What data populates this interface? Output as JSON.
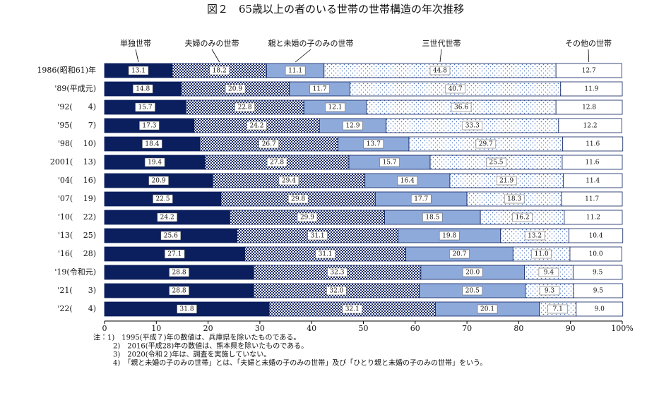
{
  "chart_data": {
    "type": "stacked-bar-horizontal",
    "title": "図２　65歳以上の者のいる世帯の世帯構造の年次推移",
    "categories": [
      "1986(昭和61)年",
      "'89(平成元)",
      "'92(　　4)",
      "'95(　　7)",
      "'98(　 10)",
      "2001(　 13)",
      "'04(　 16)",
      "'07(　 19)",
      "'10(　 22)",
      "'13(　 25)",
      "'16(　 28)",
      "'19(令和元)",
      "'21(　　3)",
      "'22(　　4)"
    ],
    "series": [
      {
        "name": "単独世帯",
        "color": "#0b1f5e",
        "pattern": "solid",
        "values": [
          13.1,
          14.8,
          15.7,
          17.3,
          18.4,
          19.4,
          20.9,
          22.5,
          24.2,
          25.6,
          27.1,
          28.8,
          28.8,
          31.8
        ],
        "value_labels": [
          "13.1",
          "14.8",
          "15.7",
          "17.3",
          "18.4",
          "19.4",
          "20.9",
          "22.5",
          "24.2",
          "25.6",
          "27.1",
          "28.8",
          "28.8",
          "31.8"
        ]
      },
      {
        "name": "夫婦のみの世帯",
        "color": "#1a2d6b",
        "pattern": "checker",
        "values": [
          18.2,
          20.9,
          22.8,
          24.2,
          26.7,
          27.8,
          29.4,
          29.8,
          29.9,
          31.1,
          31.1,
          32.3,
          32.0,
          32.1
        ],
        "value_labels": [
          "18.2",
          "20.9",
          "22.8",
          "24.2",
          "26.7",
          "27.8",
          "29.4",
          "29.8",
          "29.9",
          "31.1",
          "31.1",
          "32.3",
          "32.0",
          "32.1"
        ]
      },
      {
        "name": "親と未婚の子のみの世帯",
        "color": "#8eaadb",
        "pattern": "solid",
        "values": [
          11.1,
          11.7,
          12.1,
          12.9,
          13.7,
          15.7,
          16.4,
          17.7,
          18.5,
          19.8,
          20.7,
          20.0,
          20.5,
          20.1
        ],
        "value_labels": [
          "11.1",
          "11.7",
          "12.1",
          "12.9",
          "13.7",
          "15.7",
          "16.4",
          "17.7",
          "18.5",
          "19.8",
          "20.7",
          "20.0",
          "20.5",
          "20.1"
        ]
      },
      {
        "name": "三世代世帯",
        "color": "#3f6fc4",
        "pattern": "dots",
        "values": [
          44.8,
          40.7,
          36.6,
          33.3,
          29.7,
          25.5,
          21.9,
          18.3,
          16.2,
          13.2,
          11.0,
          9.4,
          9.3,
          7.1
        ],
        "value_labels": [
          "44.8",
          "40.7",
          "36.6",
          "33.3",
          "29.7",
          "25.5",
          "21.9",
          "18.3",
          "16.2",
          "13.2",
          "11.0",
          "9.4",
          "9.3",
          "7.1"
        ]
      },
      {
        "name": "その他の世帯",
        "color": "#ffffff",
        "pattern": "solid",
        "values": [
          12.7,
          11.9,
          12.8,
          12.2,
          11.6,
          11.6,
          11.4,
          11.7,
          11.2,
          10.4,
          10.0,
          9.5,
          9.5,
          9.0
        ],
        "value_labels": [
          "12.7",
          "11.9",
          "12.8",
          "12.2",
          "11.6",
          "11.6",
          "11.4",
          "11.7",
          "11.2",
          "10.4",
          "10.0",
          "9.5",
          "9.5",
          "9.0"
        ]
      }
    ],
    "xlim": [
      0,
      100
    ],
    "xticks": [
      0,
      10,
      20,
      30,
      40,
      50,
      60,
      70,
      80,
      90,
      {
        "value": 100,
        "label": "100%"
      }
    ],
    "notes": [
      "注：1)　1995(平成７)年の数値は、兵庫県を除いたものである。",
      "2)　2016(平成28)年の数値は、熊本県を除いたものである。",
      "3)　2020(令和２)年は、調査を実施していない。",
      "4)　「親と未婚の子のみの世帯」とは、「夫婦と未婚の子のみの世帯」及び「ひとり親と未婚の子のみの世帯」をいう。"
    ]
  }
}
